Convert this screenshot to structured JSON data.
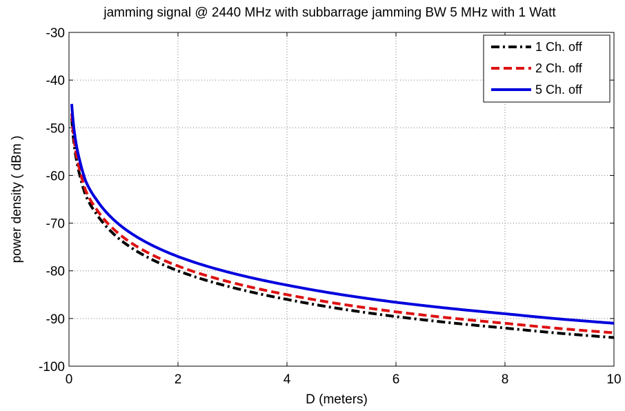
{
  "chart_data": {
    "type": "line",
    "title": "jamming signal @ 2440 MHz  with  subbarrage jamming BW 5 MHz with 1 Watt",
    "xlabel": "D  (meters)",
    "ylabel": "power density ( dBm )",
    "xlim": [
      0,
      10
    ],
    "ylim": [
      -100,
      -30
    ],
    "xticks": [
      0,
      2,
      4,
      6,
      8,
      10
    ],
    "yticks": [
      -30,
      -40,
      -50,
      -60,
      -70,
      -80,
      -90,
      -100
    ],
    "grid": true,
    "legend_position": "top-right",
    "series": [
      {
        "name": "1 Ch. off",
        "color": "#000000",
        "style": "dash-dot",
        "x": [
          0.05,
          0.1,
          0.2,
          0.3,
          0.5,
          0.75,
          1,
          1.5,
          2,
          3,
          4,
          5,
          6,
          7,
          8,
          9,
          10
        ],
        "y": [
          -48,
          -54,
          -60,
          -64,
          -68,
          -71.5,
          -74,
          -77.5,
          -80,
          -83.5,
          -86,
          -88,
          -89.6,
          -90.9,
          -92,
          -93.1,
          -94
        ]
      },
      {
        "name": "2 Ch. off",
        "color": "#dd1111",
        "style": "dash",
        "x": [
          0.05,
          0.1,
          0.2,
          0.3,
          0.5,
          0.75,
          1,
          1.5,
          2,
          3,
          4,
          5,
          6,
          7,
          8,
          9,
          10
        ],
        "y": [
          -47,
          -53,
          -59,
          -63,
          -67,
          -70.5,
          -73,
          -76.5,
          -79,
          -82.5,
          -85,
          -87,
          -88.6,
          -89.9,
          -91,
          -92.1,
          -93
        ]
      },
      {
        "name": "5 Ch. off",
        "color": "#0000dd",
        "style": "solid",
        "x": [
          0.05,
          0.1,
          0.2,
          0.3,
          0.5,
          0.75,
          1,
          1.5,
          2,
          3,
          4,
          5,
          6,
          7,
          8,
          9,
          10
        ],
        "y": [
          -45,
          -51,
          -57,
          -61,
          -65,
          -68.5,
          -71,
          -74.5,
          -77,
          -80.5,
          -83,
          -85,
          -86.6,
          -87.9,
          -89,
          -90.1,
          -91
        ]
      }
    ]
  }
}
